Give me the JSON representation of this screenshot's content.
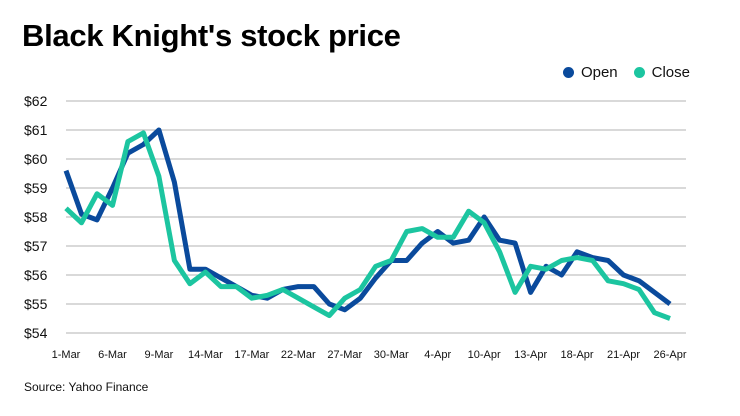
{
  "chart_data": {
    "type": "line",
    "title": "Black Knight's stock price",
    "source": "Source: Yahoo Finance",
    "xlabel": "",
    "ylabel": "",
    "ylim": [
      54,
      62
    ],
    "yticks": [
      "$62",
      "$61",
      "$60",
      "$59",
      "$58",
      "$57",
      "$56",
      "$55",
      "$54"
    ],
    "ytick_values": [
      62,
      61,
      60,
      59,
      58,
      57,
      56,
      55,
      54
    ],
    "xtick_labels": [
      "1-Mar",
      "6-Mar",
      "9-Mar",
      "14-Mar",
      "17-Mar",
      "22-Mar",
      "27-Mar",
      "30-Mar",
      "4-Apr",
      "10-Apr",
      "13-Apr",
      "18-Apr",
      "21-Apr",
      "26-Apr"
    ],
    "xtick_indices": [
      0,
      3,
      6,
      9,
      12,
      15,
      18,
      21,
      24,
      27,
      30,
      33,
      36,
      39
    ],
    "grid": true,
    "legend_position": "top-right",
    "series": [
      {
        "name": "Open",
        "color": "#0a4a9c",
        "values": [
          59.6,
          58.1,
          57.9,
          59.0,
          60.2,
          60.5,
          61.0,
          59.2,
          56.2,
          56.2,
          55.9,
          55.6,
          55.3,
          55.2,
          55.5,
          55.6,
          55.6,
          55.0,
          54.8,
          55.2,
          55.9,
          56.5,
          56.5,
          57.1,
          57.5,
          57.1,
          57.2,
          58.0,
          57.2,
          57.1,
          55.4,
          56.3,
          56.0,
          56.8,
          56.6,
          56.5,
          56.0,
          55.8,
          55.4,
          55.0
        ],
        "color_hex": "#0a4a9c"
      },
      {
        "name": "Close",
        "color": "#1cc5a0",
        "values": [
          58.3,
          57.8,
          58.8,
          58.4,
          60.6,
          60.9,
          59.4,
          56.5,
          55.7,
          56.1,
          55.6,
          55.6,
          55.2,
          55.3,
          55.5,
          55.2,
          54.9,
          54.6,
          55.2,
          55.5,
          56.3,
          56.5,
          57.5,
          57.6,
          57.3,
          57.3,
          58.2,
          57.8,
          56.8,
          55.4,
          56.3,
          56.2,
          56.5,
          56.6,
          56.5,
          55.8,
          55.7,
          55.5,
          54.7,
          54.5
        ],
        "color_hex": "#1cc5a0"
      }
    ]
  },
  "legend": {
    "open_label": "Open",
    "close_label": "Close"
  },
  "colors": {
    "grid": "#9a9a9a",
    "open": "#0a4a9c",
    "close": "#1cc5a0"
  }
}
